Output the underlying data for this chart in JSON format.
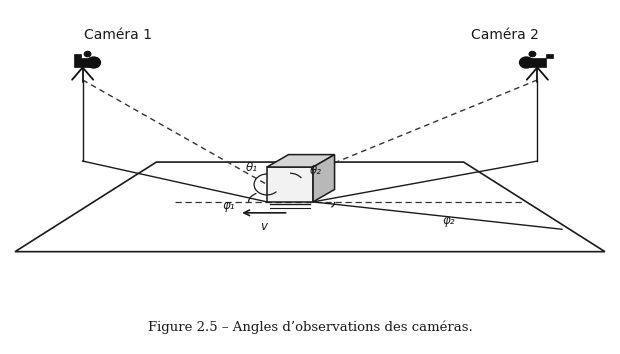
{
  "title": "Figure 2.5 – Angles d’observations des caméras.",
  "cam1_label": "Caméra 1",
  "cam2_label": "Caméra 2",
  "line_color": "#1a1a1a",
  "dashed_color": "#333333",
  "bg_color": "#ffffff",
  "angle_labels": [
    "θ₁",
    "θ₂",
    "φ₁",
    "φ₂"
  ],
  "v_label": "v",
  "figsize": [
    6.2,
    3.54
  ],
  "dpi": 100
}
